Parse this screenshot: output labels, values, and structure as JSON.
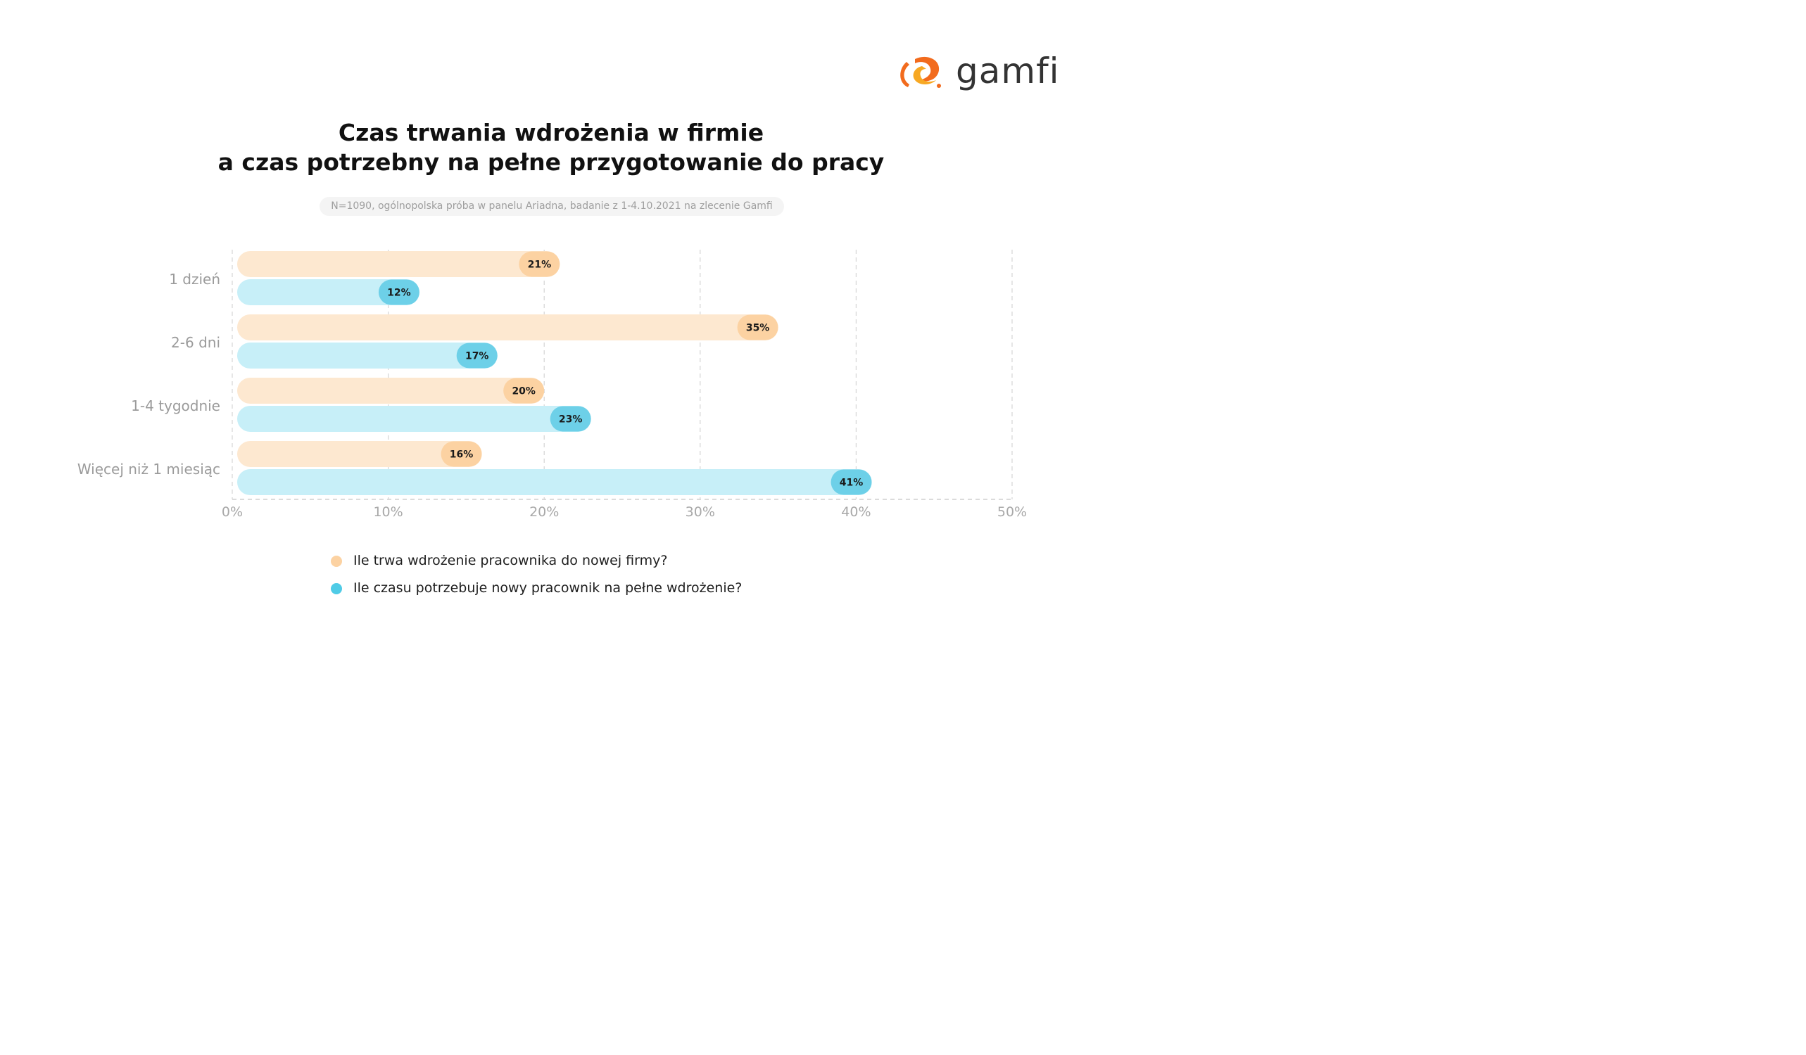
{
  "brand": {
    "name": "gamfi",
    "colors": {
      "orange": "#f26b1d",
      "yellow": "#f7a823"
    }
  },
  "title": {
    "line1": "Czas trwania wdrożenia w firmie",
    "line2": "a czas potrzebny na pełne przygotowanie do pracy"
  },
  "note": "N=1090, ogólnopolska próba w panelu Ariadna, badanie z 1-4.10.2021 na zlecenie Gamfi",
  "chart_data": {
    "type": "bar",
    "orientation": "horizontal",
    "categories": [
      "1 dzień",
      "2-6 dni",
      "1-4 tygodnie",
      "Więcej niż 1 miesiąc"
    ],
    "series": [
      {
        "name": "Ile trwa wdrożenie pracownika do nowej firmy?",
        "values": [
          21,
          35,
          20,
          16
        ],
        "bar_color": "#fde8d0",
        "label_color": "#fcd2a2"
      },
      {
        "name": "Ile czasu potrzebuje nowy pracownik na pełne wdrożenie?",
        "values": [
          12,
          17,
          23,
          41
        ],
        "bar_color": "#c7eff8",
        "label_color": "#6dd0e8"
      }
    ],
    "value_labels": [
      [
        "21%",
        "35%",
        "20%",
        "16%"
      ],
      [
        "12%",
        "17%",
        "23%",
        "41%"
      ]
    ],
    "x_ticks": [
      0,
      10,
      20,
      30,
      40,
      50
    ],
    "x_tick_labels": [
      "0%",
      "10%",
      "20%",
      "30%",
      "40%",
      "50%"
    ],
    "xlim": [
      0,
      50
    ],
    "grid": true,
    "legend_position": "bottom"
  },
  "legend": [
    {
      "label": "Ile trwa wdrożenie pracownika do nowej firmy?",
      "color": "#fcd2a2"
    },
    {
      "label": "Ile czasu potrzebuje nowy pracownik na pełne wdrożenie?",
      "color": "#4fcbe6"
    }
  ]
}
